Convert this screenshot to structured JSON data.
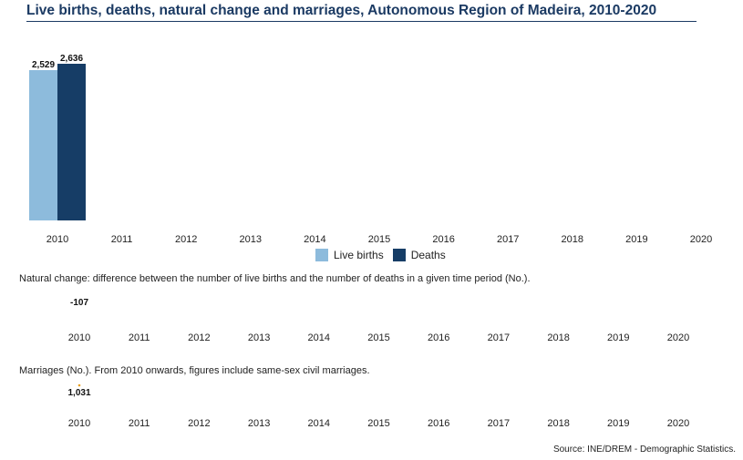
{
  "title": "Live births, deaths, natural change and marriages, Autonomous Region of Madeira, 2010-2020",
  "colors": {
    "live_births": "#8dbbdc",
    "deaths": "#163d66",
    "title": "#1b3a63",
    "marriage_dot": "#e8a020"
  },
  "legend": [
    {
      "label": "Live births",
      "color": "#8dbbdc"
    },
    {
      "label": "Deaths",
      "color": "#163d66"
    }
  ],
  "natural_change_caption": "Natural change: difference between the number of live births and the number of deaths in a given time period (No.).",
  "marriages_caption": "Marriages (No.). From 2010 onwards, figures include same-sex civil marriages.",
  "source": "Source: INE/DREM - Demographic Statistics.",
  "chart_data": [
    {
      "type": "bar",
      "categories": [
        "2010",
        "2011",
        "2012",
        "2013",
        "2014",
        "2015",
        "2016",
        "2017",
        "2018",
        "2019",
        "2020"
      ],
      "series": [
        {
          "name": "Live births",
          "values": [
            2529,
            null,
            null,
            null,
            null,
            null,
            null,
            null,
            null,
            null,
            null
          ],
          "labels": [
            "2,529"
          ]
        },
        {
          "name": "Deaths",
          "values": [
            2636,
            null,
            null,
            null,
            null,
            null,
            null,
            null,
            null,
            null,
            null
          ],
          "labels": [
            "2,636"
          ]
        }
      ],
      "ylim": [
        0,
        2636
      ],
      "legend": "bottom"
    },
    {
      "type": "line",
      "categories": [
        "2010",
        "2011",
        "2012",
        "2013",
        "2014",
        "2015",
        "2016",
        "2017",
        "2018",
        "2019",
        "2020"
      ],
      "values": [
        -107,
        null,
        null,
        null,
        null,
        null,
        null,
        null,
        null,
        null,
        null
      ],
      "labels": [
        "-107"
      ]
    },
    {
      "type": "line",
      "categories": [
        "2010",
        "2011",
        "2012",
        "2013",
        "2014",
        "2015",
        "2016",
        "2017",
        "2018",
        "2019",
        "2020"
      ],
      "values": [
        1031,
        null,
        null,
        null,
        null,
        null,
        null,
        null,
        null,
        null,
        null
      ],
      "labels": [
        "1,031"
      ]
    }
  ]
}
